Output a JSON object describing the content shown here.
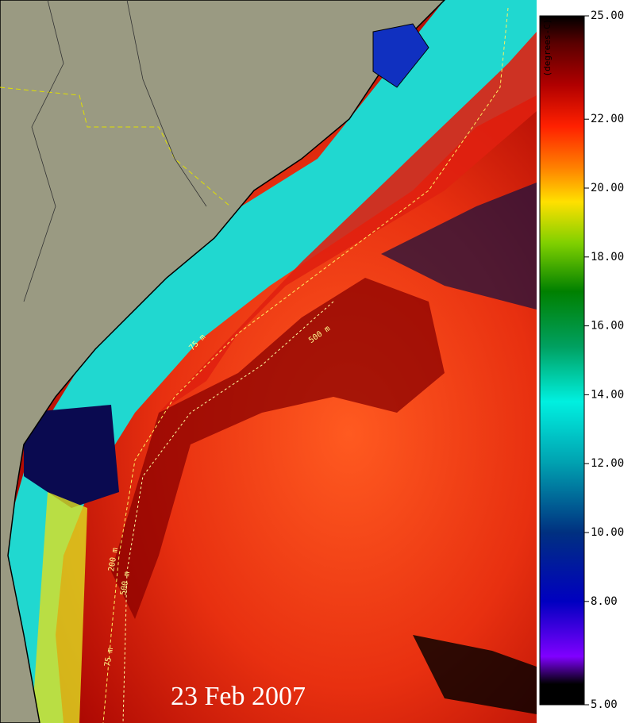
{
  "date": "23 Feb 2007",
  "colorbar": {
    "title": "(degrees-C)",
    "lim": [
      5,
      25
    ],
    "ticks": [
      {
        "value": 25,
        "label": "25.00"
      },
      {
        "value": 22,
        "label": "22.00"
      },
      {
        "value": 20,
        "label": "20.00"
      },
      {
        "value": 18,
        "label": "18.00"
      },
      {
        "value": 16,
        "label": "16.00"
      },
      {
        "value": 14,
        "label": "14.00"
      },
      {
        "value": 12,
        "label": "12.00"
      },
      {
        "value": 10,
        "label": "10.00"
      },
      {
        "value": 8,
        "label": "8.00"
      },
      {
        "value": 5,
        "label": "5.00"
      }
    ]
  },
  "contour_labels": [
    "75 m",
    "200 m",
    "500 m"
  ]
}
